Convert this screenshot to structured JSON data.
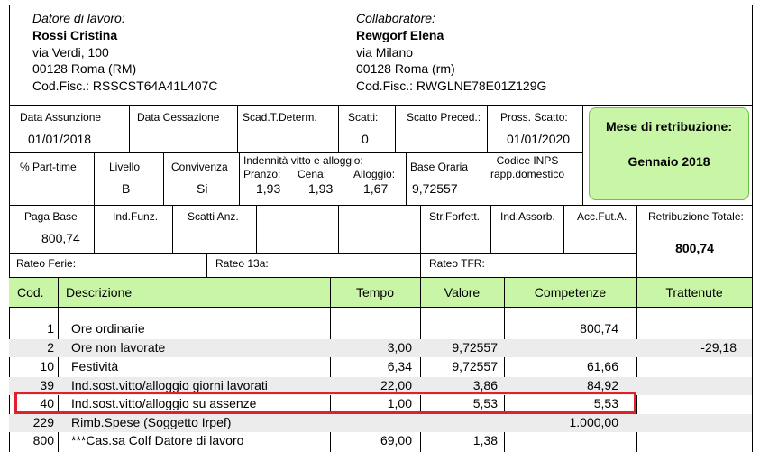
{
  "employer": {
    "heading": "Datore di lavoro:",
    "name": "Rossi Cristina",
    "address": "via Verdi, 100",
    "city": "00128 Roma (RM)",
    "tax_code": "Cod.Fisc.: RSSCST64A41L407C"
  },
  "employee": {
    "heading": "Collaboratore:",
    "name": "Rewgorf Elena",
    "address": "via Milano",
    "city": "00128 Roma (rm)",
    "tax_code": "Cod.Fisc.: RWGLNE78E01Z129G"
  },
  "info": {
    "data_assunzione_label": "Data Assunzione",
    "data_assunzione": "01/01/2018",
    "data_cessazione_label": "Data Cessazione",
    "scad_label": "Scad.T.Determ.",
    "scatti_label": "Scatti:",
    "scatti": "0",
    "scatto_preced_label": "Scatto Preced.:",
    "pross_scatto_label": "Pross. Scatto:",
    "pross_scatto": "01/01/2020",
    "part_time_label": "% Part-time",
    "livello_label": "Livello",
    "livello": "B",
    "convivenza_label": "Convivenza",
    "convivenza": "Si",
    "indennita_label": "Indennità vitto e alloggio:",
    "pranzo_label": "Pranzo:",
    "pranzo": "1,93",
    "cena_label": "Cena:",
    "cena": "1,93",
    "alloggio_label": "Alloggio:",
    "alloggio": "1,67",
    "base_oraria_label": "Base Oraria",
    "base_oraria": "9,72557",
    "inps_label_1": "Codice INPS",
    "inps_label_2": "rapp.domestico"
  },
  "month_box": {
    "label": "Mese di retribuzione:",
    "value": "Gennaio 2018"
  },
  "pay": {
    "paga_base_label": "Paga Base",
    "paga_base": "800,74",
    "ind_funz_label": "Ind.Funz.",
    "scatti_anz_label": "Scatti Anz.",
    "str_forfett_label": "Str.Forfett.",
    "ind_assorb_label": "Ind.Assorb.",
    "acc_fut_label": "Acc.Fut.A.",
    "retribuzione_totale_label": "Retribuzione Totale:",
    "retribuzione_totale": "800,74",
    "rateo_ferie_label": "Rateo Ferie:",
    "rateo_13a_label": "Rateo 13a:",
    "rateo_tfr_label": "Rateo TFR:"
  },
  "table": {
    "headers": {
      "cod": "Cod.",
      "descrizione": "Descrizione",
      "tempo": "Tempo",
      "valore": "Valore",
      "competenze": "Competenze",
      "trattenute": "Trattenute"
    },
    "rows": [
      {
        "cod": "1",
        "desc": "Ore ordinarie",
        "tempo": "",
        "valore": "",
        "competenze": "800,74",
        "trattenute": ""
      },
      {
        "cod": "2",
        "desc": "Ore non lavorate",
        "tempo": "3,00",
        "valore": "9,72557",
        "competenze": "",
        "trattenute": "-29,18"
      },
      {
        "cod": "10",
        "desc": "Festività",
        "tempo": "6,34",
        "valore": "9,72557",
        "competenze": "61,66",
        "trattenute": ""
      },
      {
        "cod": "39",
        "desc": "Ind.sost.vitto/alloggio giorni lavorati",
        "tempo": "22,00",
        "valore": "3,86",
        "competenze": "84,92",
        "trattenute": ""
      },
      {
        "cod": "40",
        "desc": "Ind.sost.vitto/alloggio su assenze",
        "tempo": "1,00",
        "valore": "5,53",
        "competenze": "5,53",
        "trattenute": ""
      },
      {
        "cod": "229",
        "desc": "Rimb.Spese (Soggetto Irpef)",
        "tempo": "",
        "valore": "",
        "competenze": "1.000,00",
        "trattenute": ""
      },
      {
        "cod": "800",
        "desc": "***Cas.sa Colf Datore di lavoro",
        "tempo": "69,00",
        "valore": "1,38",
        "competenze": "",
        "trattenute": ""
      }
    ]
  }
}
